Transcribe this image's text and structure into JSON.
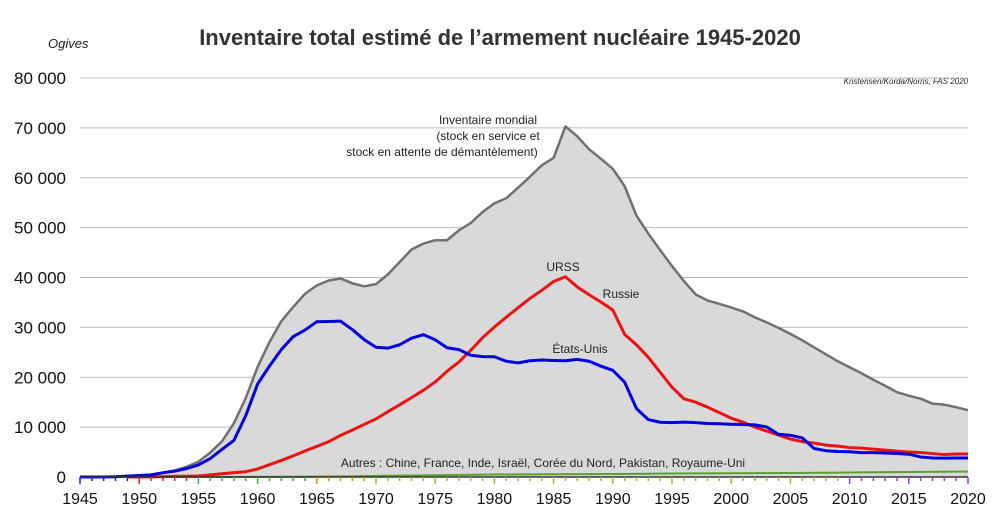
{
  "chart_data": {
    "type": "line",
    "title": "Inventaire total estimé de l’armement nucléaire 1945-2020",
    "ylabel": "Ogives",
    "xlabel": "",
    "source": "Kristensen/Korda/Norris, FAS 2020",
    "xlim": [
      1945,
      2020
    ],
    "ylim": [
      0,
      80000
    ],
    "x_ticks": [
      "1945",
      "1950",
      "1955",
      "1960",
      "1965",
      "1970",
      "1975",
      "1980",
      "1985",
      "1990",
      "1995",
      "2000",
      "2005",
      "2010",
      "2015",
      "2020"
    ],
    "y_ticks": [
      "0",
      "10 000",
      "20 000",
      "30 000",
      "40 000",
      "50 000",
      "60 000",
      "70 000",
      "80 000"
    ],
    "grid": true,
    "legend": "none",
    "annotations": {
      "world": [
        "Inventaire mondial",
        "(stock en service et",
        "stock en attente de démantèlement)"
      ],
      "ussr": "URSS",
      "russia": "Russie",
      "usa": "États-Unis",
      "others": "Autres : Chine, France, Inde, Israël, Corée du Nord, Pakistan, Royaume-Uni"
    },
    "colors": {
      "world_fill": "#d9d9d9",
      "world_line": "#707070",
      "usa": "#0000dd",
      "ussr_russia": "#ee1111",
      "others": "#5aa02c",
      "grid": "#bbbbbb"
    },
    "series": [
      {
        "key": "world",
        "x": [
          1945,
          1946,
          1947,
          1948,
          1949,
          1950,
          1951,
          1952,
          1953,
          1954,
          1955,
          1956,
          1957,
          1958,
          1959,
          1960,
          1961,
          1962,
          1963,
          1964,
          1965,
          1966,
          1967,
          1968,
          1969,
          1970,
          1971,
          1972,
          1973,
          1974,
          1975,
          1976,
          1977,
          1978,
          1979,
          1980,
          1981,
          1982,
          1983,
          1984,
          1985,
          1986,
          1987,
          1988,
          1989,
          1990,
          1991,
          1992,
          1993,
          1994,
          1995,
          1996,
          1997,
          1998,
          1999,
          2000,
          2001,
          2002,
          2003,
          2004,
          2005,
          2006,
          2007,
          2008,
          2009,
          2010,
          2011,
          2012,
          2013,
          2014,
          2015,
          2016,
          2017,
          2018,
          2019,
          2020
        ],
        "values": [
          2,
          9,
          13,
          50,
          170,
          304,
          488,
          886,
          1305,
          2051,
          3057,
          4896,
          7183,
          10796,
          15845,
          22069,
          27051,
          31231,
          34066,
          36722,
          38423,
          39395,
          39807,
          38841,
          38230,
          38675,
          40595,
          43110,
          45614,
          46802,
          47474,
          47472,
          49450,
          50923,
          53115,
          54880,
          55890,
          58000,
          60200,
          62500,
          64000,
          70300,
          68300,
          65700,
          63800,
          61800,
          58300,
          52400,
          48800,
          45500,
          42300,
          39300,
          36600,
          35400,
          34700,
          34000,
          33200,
          32000,
          31000,
          29900,
          28700,
          27400,
          26000,
          24600,
          23200,
          22000,
          20800,
          19500,
          18300,
          17000,
          16300,
          15700,
          14700,
          14500,
          14000,
          13400
        ]
      },
      {
        "key": "usa",
        "x": [
          1945,
          1946,
          1947,
          1948,
          1949,
          1950,
          1951,
          1952,
          1953,
          1954,
          1955,
          1956,
          1957,
          1958,
          1959,
          1960,
          1961,
          1962,
          1963,
          1964,
          1965,
          1966,
          1967,
          1968,
          1969,
          1970,
          1971,
          1972,
          1973,
          1974,
          1975,
          1976,
          1977,
          1978,
          1979,
          1980,
          1981,
          1982,
          1983,
          1984,
          1985,
          1986,
          1987,
          1988,
          1989,
          1990,
          1991,
          1992,
          1993,
          1994,
          1995,
          1996,
          1997,
          1998,
          1999,
          2000,
          2001,
          2002,
          2003,
          2004,
          2005,
          2006,
          2007,
          2008,
          2009,
          2010,
          2011,
          2012,
          2013,
          2014,
          2015,
          2016,
          2017,
          2018,
          2019,
          2020
        ],
        "values": [
          2,
          9,
          13,
          50,
          170,
          299,
          438,
          841,
          1169,
          1703,
          2422,
          3692,
          5543,
          7345,
          12298,
          18638,
          22229,
          25540,
          28133,
          29463,
          31139,
          31175,
          31255,
          29561,
          27552,
          26008,
          25830,
          26516,
          27835,
          28537,
          27519,
          25914,
          25542,
          24418,
          24138,
          24104,
          23208,
          22886,
          23305,
          23459,
          23368,
          23317,
          23575,
          23205,
          22217,
          21392,
          19008,
          13708,
          11511,
          10979,
          10904,
          11011,
          10903,
          10732,
          10685,
          10577,
          10526,
          10457,
          10027,
          8570,
          8360,
          7853,
          5709,
          5273,
          5113,
          5066,
          4897,
          4881,
          4804,
          4717,
          4571,
          4018,
          3822,
          3785,
          3805,
          3800
        ]
      },
      {
        "key": "ussr_russia",
        "x": [
          1949,
          1950,
          1951,
          1952,
          1953,
          1954,
          1955,
          1956,
          1957,
          1958,
          1959,
          1960,
          1961,
          1962,
          1963,
          1964,
          1965,
          1966,
          1967,
          1968,
          1969,
          1970,
          1971,
          1972,
          1973,
          1974,
          1975,
          1976,
          1977,
          1978,
          1979,
          1980,
          1981,
          1982,
          1983,
          1984,
          1985,
          1986,
          1987,
          1988,
          1989,
          1990,
          1991,
          1992,
          1993,
          1994,
          1995,
          1996,
          1997,
          1998,
          1999,
          2000,
          2001,
          2002,
          2003,
          2004,
          2005,
          2006,
          2007,
          2008,
          2009,
          2010,
          2011,
          2012,
          2013,
          2014,
          2015,
          2016,
          2017,
          2018,
          2019,
          2020
        ],
        "values": [
          1,
          5,
          25,
          50,
          120,
          150,
          200,
          426,
          660,
          869,
          1060,
          1605,
          2471,
          3322,
          4238,
          5221,
          6129,
          7089,
          8339,
          9399,
          10538,
          11643,
          13092,
          14478,
          15915,
          17385,
          19055,
          21205,
          23044,
          25393,
          27935,
          30062,
          32049,
          33952,
          35804,
          37431,
          39197,
          40159,
          38107,
          36538,
          35078,
          33486,
          28595,
          26500,
          24000,
          21000,
          18000,
          15700,
          15000,
          14000,
          12900,
          11800,
          11000,
          10000,
          9200,
          8400,
          7600,
          7100,
          6800,
          6400,
          6200,
          5900,
          5800,
          5600,
          5400,
          5200,
          5000,
          4900,
          4700,
          4500,
          4600,
          4600
        ]
      },
      {
        "key": "others",
        "x": [
          1952,
          1955,
          1960,
          1965,
          1970,
          1975,
          1980,
          1985,
          1990,
          1995,
          2000,
          2005,
          2010,
          2015,
          2020
        ],
        "values": [
          1,
          10,
          30,
          80,
          200,
          350,
          500,
          550,
          600,
          700,
          750,
          800,
          900,
          1000,
          1100
        ]
      }
    ]
  }
}
